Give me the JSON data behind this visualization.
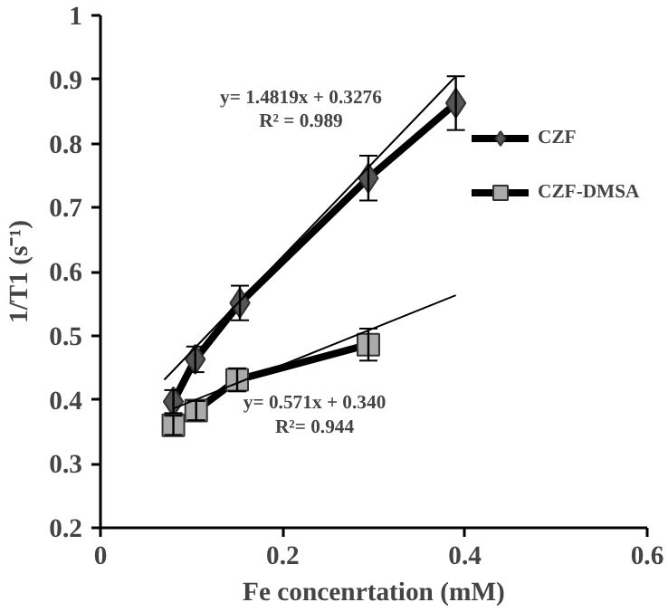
{
  "chart_data": {
    "type": "line",
    "xlabel": "Fe concenrtation (mM)",
    "ylabel": "1/T1 (s⁻¹)",
    "xlim": [
      0,
      0.6
    ],
    "xticks": [
      0,
      0.2,
      0.4,
      0.6
    ],
    "ylim": [
      0.2,
      1
    ],
    "yticks": [
      0.2,
      0.3,
      0.4,
      0.5,
      0.6,
      0.7,
      0.8,
      0.9,
      1
    ],
    "grid": false,
    "legend": "top right",
    "line_style": "solid",
    "series": [
      {
        "name": "CZF",
        "color": "#555555",
        "marker": "diamond",
        "x": [
          0.08,
          0.104,
          0.153,
          0.294,
          0.39
        ],
        "values": [
          0.397,
          0.463,
          0.551,
          0.746,
          0.863
        ],
        "errors": [
          0.018,
          0.02,
          0.027,
          0.035,
          0.042
        ]
      },
      {
        "name": "CZF-DMSA",
        "color": "#aaaaaa",
        "marker": "square",
        "x": [
          0.08,
          0.105,
          0.15,
          0.294
        ],
        "values": [
          0.36,
          0.383,
          0.431,
          0.486
        ],
        "errors": [
          0.015,
          0.015,
          0.018,
          0.025
        ]
      },
      {
        "type": "line",
        "color": "#000000",
        "marker": "none",
        "x": [
          0.07,
          0.39
        ],
        "values": [
          0.431,
          0.905
        ]
      },
      {
        "type": "line",
        "color": "#000000",
        "marker": "none",
        "x": [
          0.08,
          0.39
        ],
        "values": [
          0.386,
          0.563
        ]
      }
    ],
    "annotations": [
      "y= 1.4819x + 0.3276",
      "R² = 0.989",
      "y= 0.571x + 0.340",
      "R²= 0.944"
    ]
  }
}
